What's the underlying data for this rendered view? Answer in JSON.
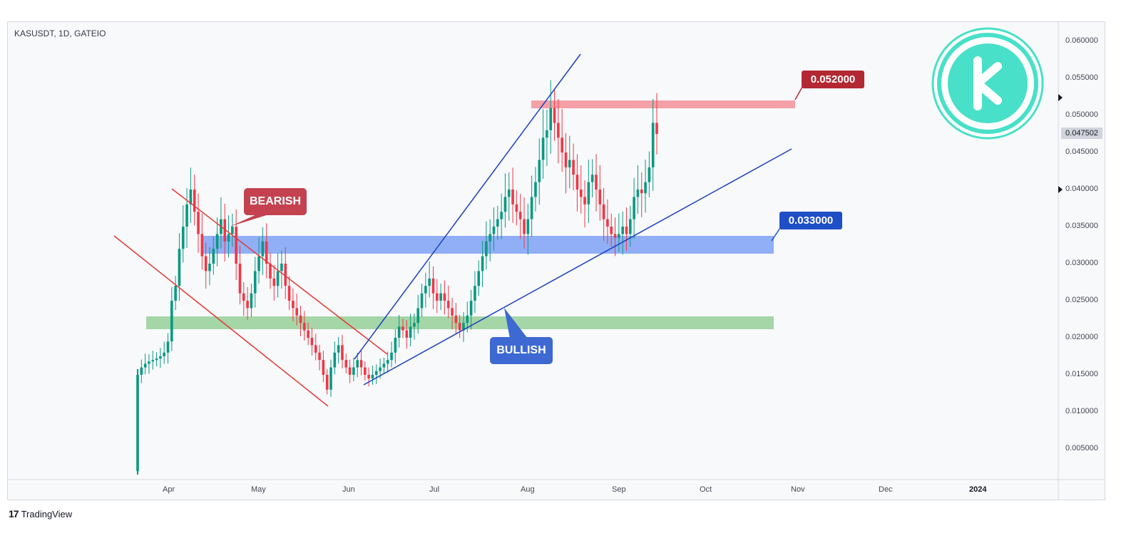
{
  "header": {
    "symbol": "KASUSDT, 1D, GATEIO"
  },
  "footer": {
    "brand": "TradingView"
  },
  "colors": {
    "up": "#089981",
    "down": "#f23645",
    "bearish": "#c4424f",
    "bullish": "#3e69d3",
    "resistance": "#f5a0a7",
    "support_blue": "#7fa2f5",
    "support_green": "#a5d6a7",
    "kaspa": "#48e0c8"
  },
  "annotations": {
    "bearish_label": "BEARISH",
    "bullish_label": "BULLISH",
    "resistance_label": "0.052000",
    "support_label": "0.033000"
  },
  "chart_data": {
    "type": "candlestick",
    "title": "KASUSDT, 1D, GATEIO",
    "x_ticks": [
      "Apr",
      "May",
      "Jun",
      "Jul",
      "Aug",
      "Sep",
      "Oct",
      "Nov",
      "Dec",
      "2024"
    ],
    "y_ticks": [
      "0.060000",
      "0.055000",
      "0.050000",
      "0.045000",
      "0.040000",
      "0.035000",
      "0.030000",
      "0.025000",
      "0.020000",
      "0.015000",
      "0.010000",
      "0.005000"
    ],
    "ylim": [
      0.0,
      0.062
    ],
    "last_price": "0.047502",
    "levels": [
      {
        "name": "resistance",
        "value": 0.052
      },
      {
        "name": "support",
        "value": 0.033
      },
      {
        "name": "support_low",
        "value": 0.022
      }
    ],
    "closes": [
      0.015,
      0.016,
      0.0165,
      0.0168,
      0.017,
      0.0172,
      0.0175,
      0.018,
      0.0195,
      0.025,
      0.027,
      0.032,
      0.035,
      0.038,
      0.04,
      0.037,
      0.034,
      0.031,
      0.029,
      0.03,
      0.032,
      0.034,
      0.036,
      0.033,
      0.034,
      0.035,
      0.03,
      0.026,
      0.025,
      0.024,
      0.026,
      0.029,
      0.031,
      0.033,
      0.03,
      0.028,
      0.027,
      0.029,
      0.03,
      0.027,
      0.025,
      0.024,
      0.023,
      0.022,
      0.021,
      0.02,
      0.019,
      0.018,
      0.017,
      0.015,
      0.013,
      0.016,
      0.018,
      0.019,
      0.017,
      0.016,
      0.015,
      0.016,
      0.017,
      0.016,
      0.015,
      0.0145,
      0.015,
      0.0155,
      0.016,
      0.0165,
      0.017,
      0.018,
      0.02,
      0.0215,
      0.021,
      0.02,
      0.0215,
      0.022,
      0.024,
      0.026,
      0.027,
      0.028,
      0.026,
      0.025,
      0.026,
      0.025,
      0.024,
      0.023,
      0.022,
      0.021,
      0.022,
      0.023,
      0.025,
      0.027,
      0.029,
      0.031,
      0.033,
      0.034,
      0.035,
      0.036,
      0.037,
      0.039,
      0.04,
      0.038,
      0.037,
      0.036,
      0.034,
      0.036,
      0.039,
      0.041,
      0.044,
      0.047,
      0.048,
      0.051,
      0.049,
      0.047,
      0.045,
      0.043,
      0.044,
      0.042,
      0.04,
      0.039,
      0.038,
      0.041,
      0.042,
      0.04,
      0.038,
      0.036,
      0.035,
      0.034,
      0.0335,
      0.034,
      0.035,
      0.034,
      0.036,
      0.039,
      0.04,
      0.0395,
      0.041,
      0.043,
      0.049,
      0.0475
    ]
  }
}
